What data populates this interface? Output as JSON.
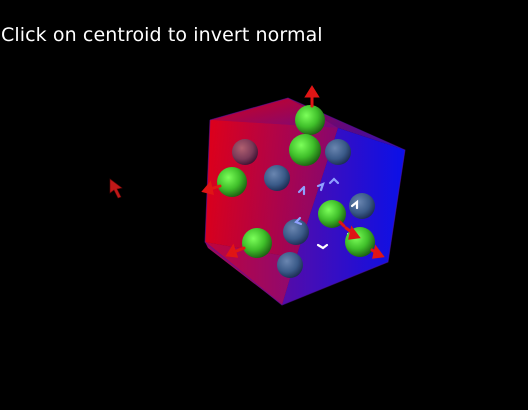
{
  "viewer": {
    "instruction": "Click on centroid to invert normal",
    "background": "#000000"
  },
  "scene": {
    "object": "cube",
    "face_colors": {
      "red_face": "#e0001c",
      "blue_face": "#0a10e8",
      "gradient_mix": "#7a0a8a"
    },
    "centroid_colors": {
      "front": "#3fbf2a",
      "back": "#3a5a88"
    },
    "normal_colors": {
      "outward": "#e01515",
      "inward": "#ffffff"
    },
    "mouse_cursor": "arrow-cursor-red"
  }
}
